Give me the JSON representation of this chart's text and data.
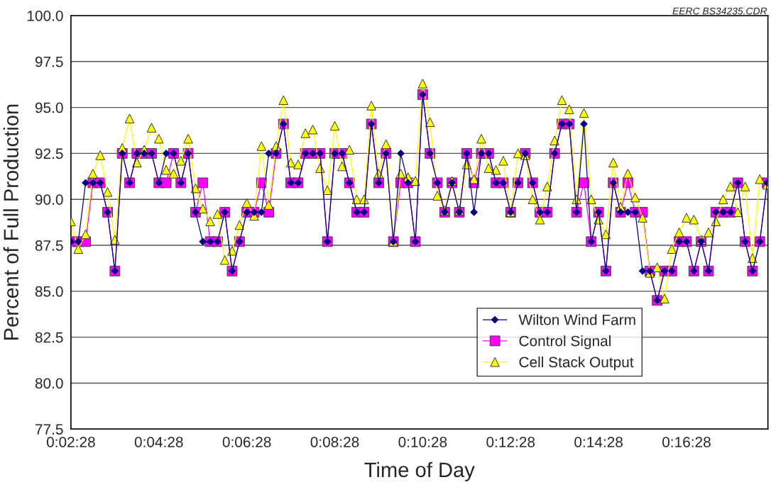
{
  "chart_data": {
    "type": "line",
    "xlabel": "Time of Day",
    "ylabel": "Percent of Full Production",
    "annotations": [
      "EERC BS34235.CDR"
    ],
    "x": [
      0.04111,
      0.04389,
      0.04667,
      0.04944,
      0.05222,
      0.055,
      0.05778,
      0.06056,
      0.06333,
      0.06611,
      0.06889,
      0.07167,
      0.07444,
      0.07722,
      0.08,
      0.08278,
      0.08556,
      0.08833,
      0.09111,
      0.09389,
      0.09667,
      0.09944,
      0.10222,
      0.105,
      0.10778,
      0.11056,
      0.11333,
      0.11611,
      0.11889,
      0.12167,
      0.12444,
      0.12722,
      0.13,
      0.13278,
      0.13556,
      0.13833,
      0.14111,
      0.14389,
      0.14667,
      0.14944,
      0.15222,
      0.155,
      0.15778,
      0.16056,
      0.16333,
      0.16611,
      0.16889,
      0.17167,
      0.17444,
      0.17722,
      0.18,
      0.18278,
      0.18556,
      0.18833,
      0.19111,
      0.19389,
      0.19667,
      0.19944,
      0.20222,
      0.205,
      0.20778,
      0.21056,
      0.21333,
      0.21611,
      0.21889,
      0.22167,
      0.22444,
      0.22722,
      0.23,
      0.23278,
      0.23556,
      0.23833,
      0.24111,
      0.24389,
      0.24667,
      0.24944,
      0.25222,
      0.255,
      0.25778,
      0.26056,
      0.26333,
      0.26611,
      0.26889,
      0.27167,
      0.27444,
      0.27722,
      0.28,
      0.28278,
      0.28556,
      0.28833,
      0.29111,
      0.29389,
      0.29667,
      0.29944,
      0.30222,
      0.305
    ],
    "series": [
      {
        "name": "Wilton Wind Farm",
        "color": "#000080",
        "marker": "diamond",
        "values": [
          87.7,
          87.7,
          90.9,
          90.9,
          90.9,
          89.3,
          86.1,
          92.5,
          90.9,
          92.5,
          92.5,
          92.5,
          90.9,
          92.5,
          92.5,
          90.9,
          92.5,
          89.3,
          87.7,
          87.7,
          87.7,
          89.3,
          86.1,
          87.7,
          89.3,
          89.3,
          89.3,
          92.5,
          92.5,
          94.1,
          90.9,
          90.9,
          92.5,
          92.5,
          92.5,
          87.7,
          92.5,
          92.5,
          90.9,
          89.3,
          89.3,
          94.1,
          90.9,
          92.5,
          87.7,
          92.5,
          90.9,
          87.7,
          95.7,
          92.5,
          90.9,
          89.3,
          90.9,
          89.3,
          92.5,
          89.3,
          92.5,
          92.5,
          90.9,
          90.9,
          89.3,
          90.9,
          92.5,
          90.9,
          89.3,
          89.3,
          92.5,
          94.1,
          94.1,
          89.3,
          94.1,
          87.7,
          89.3,
          86.1,
          90.9,
          89.3,
          89.3,
          89.3,
          86.1,
          86.1,
          84.5,
          86.1,
          86.1,
          87.7,
          87.7,
          86.1,
          87.7,
          86.1,
          89.3,
          89.3,
          89.3,
          90.9,
          87.7,
          86.1,
          87.7,
          90.9
        ]
      },
      {
        "name": "Control Signal",
        "color": "#ff00ff",
        "marker": "square",
        "values": [
          87.7,
          87.7,
          87.7,
          90.9,
          90.9,
          89.3,
          86.1,
          92.5,
          90.9,
          92.5,
          92.5,
          92.5,
          90.9,
          90.9,
          92.5,
          90.9,
          92.5,
          89.3,
          90.9,
          87.7,
          87.7,
          89.3,
          86.1,
          87.7,
          89.3,
          89.3,
          90.9,
          89.3,
          92.5,
          94.1,
          90.9,
          90.9,
          92.5,
          92.5,
          92.5,
          87.7,
          92.5,
          92.5,
          90.9,
          89.3,
          89.3,
          94.1,
          90.9,
          92.5,
          87.7,
          90.9,
          90.9,
          87.7,
          95.7,
          92.5,
          90.9,
          89.3,
          90.9,
          89.3,
          92.5,
          90.9,
          92.5,
          92.5,
          90.9,
          90.9,
          89.3,
          90.9,
          92.5,
          90.9,
          89.3,
          89.3,
          92.5,
          94.1,
          94.1,
          89.3,
          90.9,
          87.7,
          89.3,
          86.1,
          90.9,
          89.3,
          90.9,
          89.3,
          89.3,
          86.1,
          84.5,
          86.1,
          86.1,
          87.7,
          87.7,
          86.1,
          87.7,
          86.1,
          89.3,
          89.3,
          89.3,
          90.9,
          87.7,
          86.1,
          87.7,
          90.9
        ]
      },
      {
        "name": "Cell Stack Output",
        "color": "#ffff00",
        "marker": "triangle",
        "values": [
          88.8,
          87.3,
          88.1,
          91.4,
          92.4,
          90.4,
          87.8,
          92.8,
          94.4,
          92.0,
          92.7,
          93.9,
          93.3,
          91.6,
          91.4,
          92.1,
          93.3,
          90.6,
          89.5,
          88.8,
          89.2,
          86.7,
          87.2,
          88.6,
          89.8,
          89.1,
          92.9,
          89.7,
          92.9,
          95.4,
          92.0,
          91.9,
          93.6,
          93.8,
          91.7,
          90.5,
          94.0,
          91.8,
          92.7,
          90.0,
          90.0,
          95.1,
          91.4,
          93.0,
          87.7,
          91.4,
          91.2,
          91.0,
          96.3,
          94.2,
          90.2,
          89.4,
          91.0,
          89.4,
          91.9,
          91.1,
          93.3,
          91.7,
          91.6,
          92.1,
          89.3,
          92.5,
          92.4,
          90.0,
          88.9,
          90.7,
          93.2,
          95.4,
          94.9,
          90.0,
          94.7,
          90.0,
          88.9,
          88.1,
          92.0,
          89.6,
          91.4,
          90.1,
          89.0,
          86.0,
          86.3,
          84.6,
          87.3,
          88.2,
          89.0,
          88.9,
          87.8,
          88.2,
          88.8,
          90.0,
          90.7,
          89.3,
          90.7,
          86.8,
          91.1,
          90.8
        ]
      }
    ],
    "xlim": [
      0.04111,
      0.3053
    ],
    "xticks": [
      {
        "value": 0.04111,
        "label": "0:02:28"
      },
      {
        "value": 0.07444,
        "label": "0:04:28"
      },
      {
        "value": 0.10778,
        "label": "0:06:28"
      },
      {
        "value": 0.14111,
        "label": "0:08:28"
      },
      {
        "value": 0.17444,
        "label": "0:10:28"
      },
      {
        "value": 0.20778,
        "label": "0:12:28"
      },
      {
        "value": 0.24111,
        "label": "0:14:28"
      },
      {
        "value": 0.27444,
        "label": "0:16:28"
      }
    ],
    "ylim": [
      77.5,
      100
    ],
    "yticks": [
      77.5,
      {
        "value": 80,
        "label": "80.0"
      },
      82.5,
      {
        "value": 85,
        "label": "85.0"
      },
      87.5,
      {
        "value": 90,
        "label": "90.0"
      },
      92.5,
      {
        "value": 95,
        "label": "95.0"
      },
      97.5,
      {
        "value": 100,
        "label": "100.0"
      }
    ],
    "grid": "y",
    "legend": "bottom right"
  }
}
